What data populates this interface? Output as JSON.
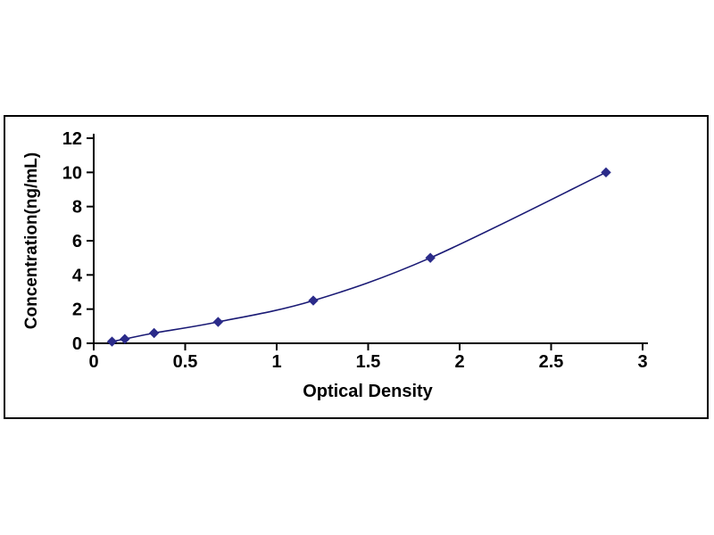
{
  "chart_data": {
    "type": "line",
    "title": "",
    "xlabel": "Optical Density",
    "ylabel": "Concentration(ng/mL)",
    "x": [
      0.1,
      0.17,
      0.33,
      0.68,
      1.2,
      1.84,
      2.8
    ],
    "y": [
      0.1,
      0.25,
      0.6,
      1.25,
      2.5,
      5.0,
      10.0
    ],
    "xlim": [
      0,
      3
    ],
    "ylim": [
      0,
      12
    ],
    "xticks": [
      0,
      0.5,
      1,
      1.5,
      2,
      2.5,
      3
    ],
    "yticks": [
      0,
      2,
      4,
      6,
      8,
      10,
      12
    ],
    "xtick_labels": [
      "0",
      "0.5",
      "1",
      "1.5",
      "2",
      "2.5",
      "3"
    ],
    "ytick_labels": [
      "0",
      "2",
      "4",
      "6",
      "8",
      "10",
      "12"
    ],
    "grid": false,
    "legend": null,
    "marker": "diamond",
    "line_color": "#1A1A75",
    "marker_color": "#2B2B8A",
    "axis_color": "#000000",
    "background_color": "#FFFFFF",
    "frame_border_color": "#000000"
  }
}
